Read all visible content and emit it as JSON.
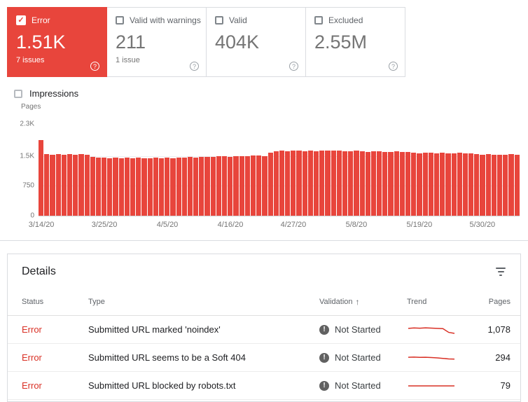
{
  "colors": {
    "error_red": "#d93025",
    "bar_red": "#e8453c",
    "border": "#dadce0"
  },
  "icons": {
    "help": "?",
    "check": "✓",
    "exclamation": "!",
    "sort_asc": "↑"
  },
  "cards": [
    {
      "label": "Error",
      "value": "1.51K",
      "sub": "7 issues",
      "selected": true
    },
    {
      "label": "Valid with warnings",
      "value": "211",
      "sub": "1 issue",
      "selected": false
    },
    {
      "label": "Valid",
      "value": "404K",
      "sub": "",
      "selected": false
    },
    {
      "label": "Excluded",
      "value": "2.55M",
      "sub": "",
      "selected": false
    }
  ],
  "impressions_label": "Impressions",
  "chart_data": {
    "type": "bar",
    "title": "",
    "ylabel": "Pages",
    "ylim": [
      0,
      2300
    ],
    "y_ticks": [
      "2.3K",
      "1.5K",
      "750",
      "0"
    ],
    "x_tick_labels": [
      "3/14/20",
      "3/25/20",
      "4/5/20",
      "4/16/20",
      "4/27/20",
      "5/8/20",
      "5/19/20",
      "5/30/20"
    ],
    "x_tick_indices": [
      0,
      11,
      22,
      33,
      44,
      55,
      66,
      77
    ],
    "bar_color": "#e8453c",
    "legend": "off",
    "grid": "horizontal",
    "values": [
      1900,
      1540,
      1530,
      1545,
      1525,
      1550,
      1535,
      1540,
      1530,
      1470,
      1455,
      1460,
      1445,
      1450,
      1440,
      1455,
      1445,
      1450,
      1435,
      1445,
      1450,
      1440,
      1455,
      1445,
      1450,
      1460,
      1470,
      1465,
      1475,
      1480,
      1470,
      1485,
      1490,
      1480,
      1495,
      1500,
      1490,
      1505,
      1510,
      1500,
      1580,
      1620,
      1630,
      1610,
      1625,
      1640,
      1620,
      1635,
      1615,
      1630,
      1640,
      1625,
      1635,
      1620,
      1610,
      1625,
      1615,
      1600,
      1620,
      1610,
      1605,
      1595,
      1615,
      1600,
      1590,
      1580,
      1570,
      1585,
      1575,
      1565,
      1580,
      1570,
      1560,
      1575,
      1565,
      1555,
      1545,
      1530,
      1540,
      1520,
      1535,
      1525,
      1540,
      1530
    ]
  },
  "details": {
    "title": "Details",
    "columns": [
      "Status",
      "Type",
      "Validation",
      "Trend",
      "Pages"
    ],
    "rows": [
      {
        "status": "Error",
        "type": "Submitted URL marked 'noindex'",
        "validation": "Not Started",
        "pages": "1,078",
        "trend": [
          0.62,
          0.65,
          0.63,
          0.66,
          0.64,
          0.62,
          0.6,
          0.3,
          0.22
        ]
      },
      {
        "status": "Error",
        "type": "Submitted URL seems to be a Soft 404",
        "validation": "Not Started",
        "pages": "294",
        "trend": [
          0.55,
          0.56,
          0.54,
          0.55,
          0.53,
          0.5,
          0.46,
          0.42,
          0.4
        ]
      },
      {
        "status": "Error",
        "type": "Submitted URL blocked by robots.txt",
        "validation": "Not Started",
        "pages": "79",
        "trend": [
          0.5,
          0.5,
          0.5,
          0.5,
          0.5,
          0.5,
          0.5,
          0.5,
          0.5
        ]
      }
    ]
  }
}
